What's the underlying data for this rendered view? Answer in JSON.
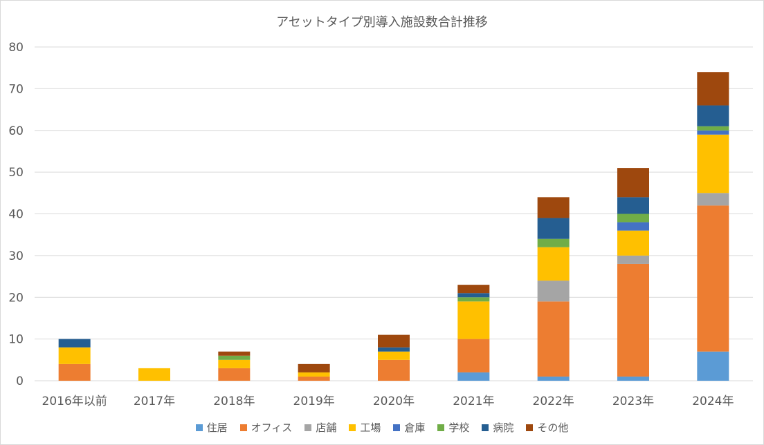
{
  "chart_data": {
    "type": "bar",
    "stacked": true,
    "title": "アセットタイプ別導入施設数合計推移",
    "xlabel": "",
    "ylabel": "",
    "ylim": [
      0,
      80
    ],
    "yticks": [
      0,
      10,
      20,
      30,
      40,
      50,
      60,
      70,
      80
    ],
    "grid": true,
    "legend": "bottom",
    "categories": [
      "2016年以前",
      "2017年",
      "2018年",
      "2019年",
      "2020年",
      "2021年",
      "2022年",
      "2023年",
      "2024年"
    ],
    "series": [
      {
        "name": "住居",
        "color": "#5b9bd5",
        "values": [
          0,
          0,
          0,
          0,
          0,
          2,
          1,
          1,
          7
        ]
      },
      {
        "name": "オフィス",
        "color": "#ed7d31",
        "values": [
          4,
          0,
          3,
          1,
          5,
          8,
          18,
          27,
          35
        ]
      },
      {
        "name": "店舗",
        "color": "#a5a5a5",
        "values": [
          0,
          0,
          0,
          0,
          0,
          0,
          5,
          2,
          3
        ]
      },
      {
        "name": "工場",
        "color": "#ffc000",
        "values": [
          4,
          3,
          2,
          1,
          2,
          9,
          8,
          6,
          14
        ]
      },
      {
        "name": "倉庫",
        "color": "#4472c4",
        "values": [
          0,
          0,
          0,
          0,
          0,
          0,
          0,
          2,
          1
        ]
      },
      {
        "name": "学校",
        "color": "#70ad47",
        "values": [
          0,
          0,
          1,
          0,
          0,
          1,
          2,
          2,
          1
        ]
      },
      {
        "name": "病院",
        "color": "#255e91",
        "values": [
          2,
          0,
          0,
          0,
          1,
          1,
          5,
          4,
          5
        ]
      },
      {
        "name": "その他",
        "color": "#9e480e",
        "values": [
          0,
          0,
          1,
          2,
          3,
          2,
          5,
          7,
          8
        ]
      }
    ]
  }
}
